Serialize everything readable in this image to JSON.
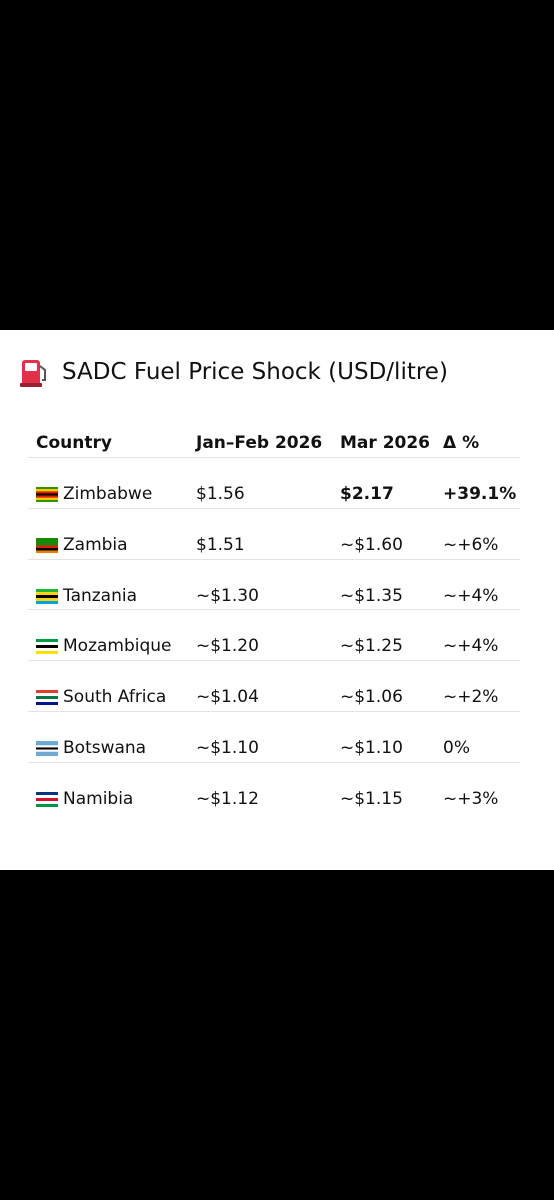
{
  "title": "SADC Fuel Price Shock (USD/litre)",
  "table": {
    "header": [
      "Country",
      "Jan–Feb 2026",
      "Mar 2026",
      "Δ %"
    ],
    "rows": [
      [
        "Zimbabwe",
        "$1.56",
        "$2.17",
        "+39.1%"
      ],
      [
        "Zambia",
        "$1.51",
        "~$1.60",
        "~+6%"
      ],
      [
        "Tanzania",
        "~$1.30",
        "~$1.35",
        "~+4%"
      ],
      [
        "Mozambique",
        "~$1.20",
        "~$1.25",
        "~+4%"
      ],
      [
        "South Africa",
        "~$1.04",
        "~$1.06",
        "~+2%"
      ],
      [
        "Botswana",
        "~$1.10",
        "~$1.10",
        "0%"
      ],
      [
        "Namibia",
        "~$1.12",
        "~$1.15",
        "~+3%"
      ]
    ]
  }
}
